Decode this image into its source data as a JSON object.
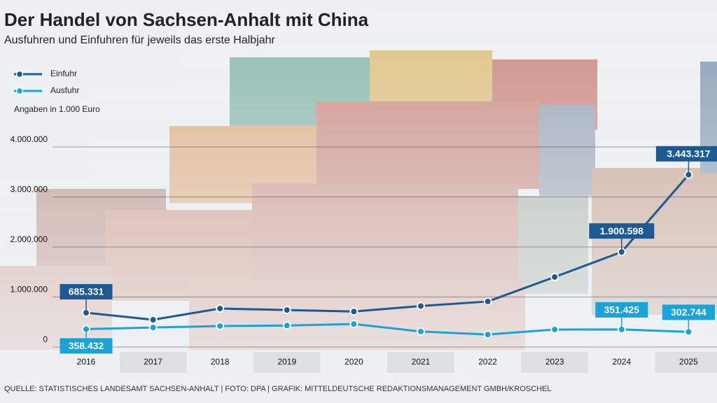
{
  "chart_data": {
    "type": "line",
    "title": "Der Handel von Sachsen-Anhalt mit China",
    "subtitle": "Ausfuhren und Einfuhren für jeweils das erste Halbjahr",
    "unit_note": "Angaben in 1.000 Euro",
    "source": "QUELLE: STATISTISCHES LANDESAMT SACHSEN-ANHALT | FOTO: DPA | GRAFIK: MITTELDEUTSCHE REDAKTIONSMANAGEMENT GMBH/KROSCHEL",
    "categories": [
      "2016",
      "2017",
      "2018",
      "2019",
      "2020",
      "2021",
      "2022",
      "2023",
      "2024",
      "2025"
    ],
    "series": [
      {
        "name": "Einfuhr",
        "color": "#1d5a94",
        "values": [
          685331,
          545000,
          770000,
          740000,
          710000,
          820000,
          910000,
          1400000,
          1900598,
          3443317
        ],
        "value_labels": [
          "685.331",
          null,
          null,
          null,
          null,
          null,
          null,
          null,
          "1.900.598",
          "3.443.317"
        ]
      },
      {
        "name": "Ausfuhr",
        "color": "#1aa3d9",
        "values": [
          358432,
          390000,
          420000,
          430000,
          460000,
          310000,
          250000,
          350000,
          351425,
          302744
        ],
        "value_labels": [
          "358.432",
          null,
          null,
          null,
          null,
          null,
          null,
          null,
          "351.425",
          "302.744"
        ]
      }
    ],
    "ylim": [
      0,
      4000000
    ],
    "yticks": [
      0,
      {
        "value": 1000000,
        "label": "1.000.000"
      },
      {
        "value": 2000000,
        "label": "2.000.000"
      },
      {
        "value": 3000000,
        "label": "3.000.000"
      },
      {
        "value": 4000000,
        "label": "4.000.000"
      }
    ],
    "grid": true,
    "legend": "top-left"
  }
}
